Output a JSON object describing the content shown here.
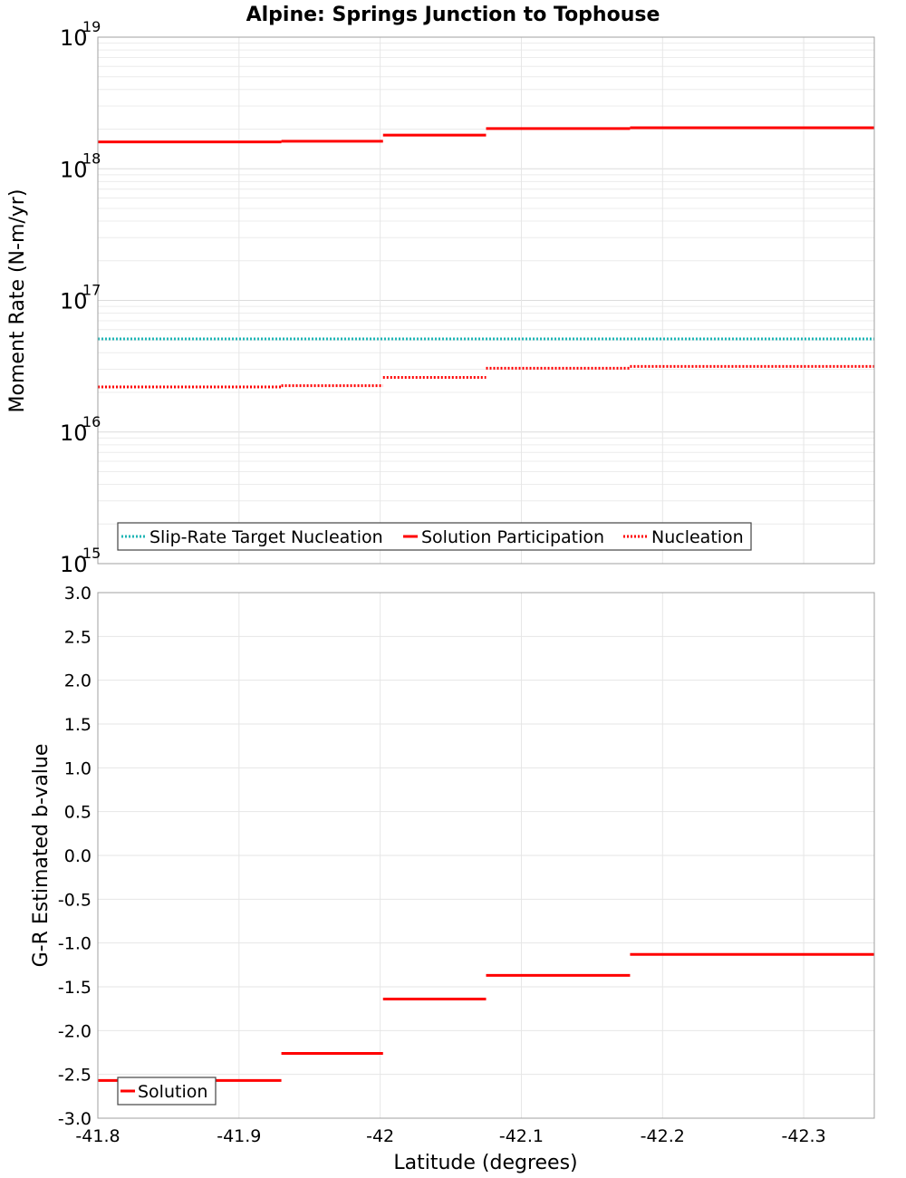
{
  "chart_data": [
    {
      "type": "line",
      "title": "Alpine: Springs Junction to Tophouse",
      "ylabel": "Moment Rate (N-m/yr)",
      "yscale": "log",
      "ylim": [
        1000000000000000.0,
        1e+19
      ],
      "xlim": [
        -41.8,
        -42.35
      ],
      "y_ticks": [
        {
          "base": "10",
          "exp": "15"
        },
        {
          "base": "10",
          "exp": "16"
        },
        {
          "base": "10",
          "exp": "17"
        },
        {
          "base": "10",
          "exp": "18"
        },
        {
          "base": "10",
          "exp": "19"
        }
      ],
      "grid": true,
      "legend_position": "bottom-left",
      "series": [
        {
          "name": "Slip-Rate Target Nucleation",
          "color": "#1fb5b5",
          "style": "dotted",
          "segments": [
            [
              -41.8,
              -42.35,
              5.1e+16
            ]
          ]
        },
        {
          "name": "Solution Participation",
          "color": "#ff0000",
          "style": "solid",
          "segments": [
            [
              -41.8,
              -41.93,
              1.6e+18
            ],
            [
              -41.93,
              -42.002,
              1.62e+18
            ],
            [
              -42.002,
              -42.075,
              1.8e+18
            ],
            [
              -42.075,
              -42.177,
              2.02e+18
            ],
            [
              -42.177,
              -42.35,
              2.05e+18
            ]
          ]
        },
        {
          "name": "Nucleation",
          "color": "#ff0000",
          "style": "dotted",
          "segments": [
            [
              -41.8,
              -41.93,
              2.2e+16
            ],
            [
              -41.93,
              -42.002,
              2.25e+16
            ],
            [
              -42.002,
              -42.075,
              2.6e+16
            ],
            [
              -42.075,
              -42.177,
              3.05e+16
            ],
            [
              -42.177,
              -42.35,
              3.15e+16
            ]
          ]
        }
      ]
    },
    {
      "type": "line",
      "xlabel": "Latitude (degrees)",
      "ylabel": "G-R Estimated b-value",
      "ylim": [
        -3.0,
        3.0
      ],
      "xlim": [
        -41.8,
        -42.35
      ],
      "y_ticks": [
        "3.0",
        "2.5",
        "2.0",
        "1.5",
        "1.0",
        "0.5",
        "0.0",
        "-0.5",
        "-1.0",
        "-1.5",
        "-2.0",
        "-2.5",
        "-3.0"
      ],
      "x_ticks": [
        "-41.8",
        "-41.9",
        "-42",
        "-42.1",
        "-42.2",
        "-42.3"
      ],
      "grid": true,
      "legend_position": "bottom-left",
      "series": [
        {
          "name": "Solution",
          "color": "#ff0000",
          "style": "solid",
          "segments": [
            [
              -41.8,
              -41.93,
              -2.57
            ],
            [
              -41.93,
              -42.002,
              -2.26
            ],
            [
              -42.002,
              -42.075,
              -1.64
            ],
            [
              -42.075,
              -42.177,
              -1.37
            ],
            [
              -42.177,
              -42.35,
              -1.13
            ]
          ]
        }
      ]
    }
  ]
}
